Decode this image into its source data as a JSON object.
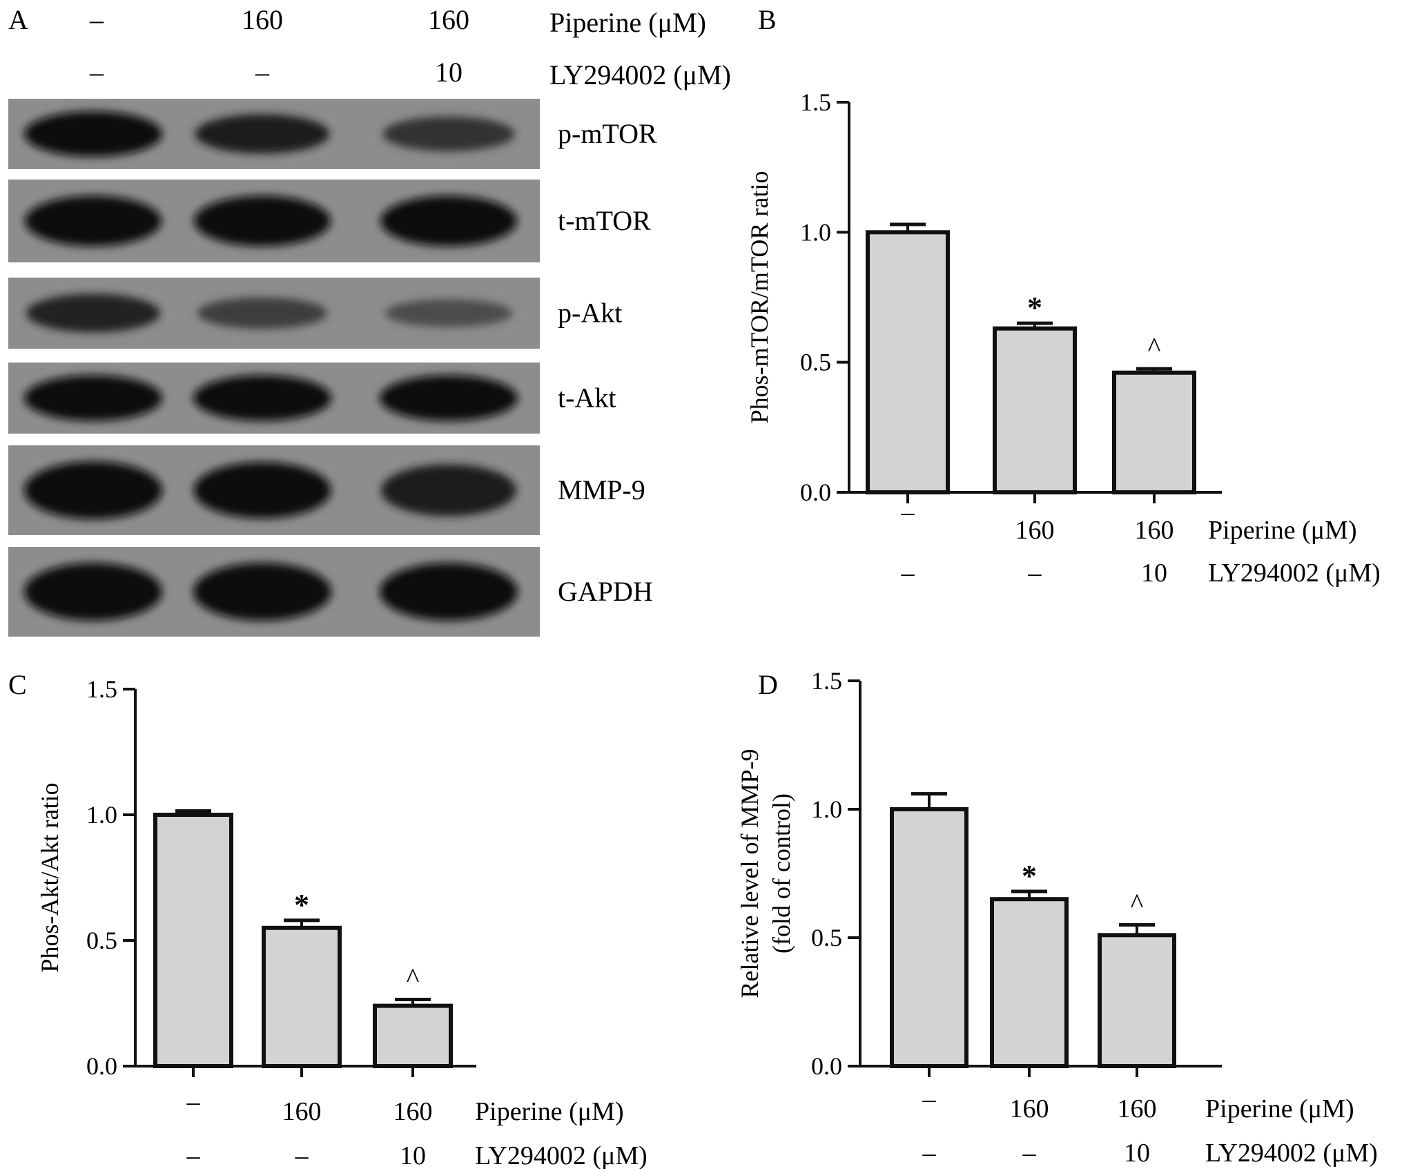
{
  "panels": {
    "A": {
      "letter": "A",
      "columns": [
        {
          "piperine": "–",
          "ly294002": "–"
        },
        {
          "piperine": "160",
          "ly294002": "–"
        },
        {
          "piperine": "160",
          "ly294002": "10"
        }
      ],
      "piperine_label": "Piperine (μM)",
      "ly294002_label": "LY294002 (μM)",
      "blots": [
        {
          "label": "p-mTOR",
          "intensities": [
            1.0,
            0.75,
            0.55
          ]
        },
        {
          "label": "t-mTOR",
          "intensities": [
            0.9,
            0.9,
            0.9
          ]
        },
        {
          "label": "p-Akt",
          "intensities": [
            0.7,
            0.4,
            0.25
          ]
        },
        {
          "label": "t-Akt",
          "intensities": [
            1.0,
            1.0,
            1.0
          ]
        },
        {
          "label": "MMP-9",
          "intensities": [
            1.0,
            0.95,
            0.8
          ]
        },
        {
          "label": "GAPDH",
          "intensities": [
            1.0,
            1.0,
            1.0
          ]
        }
      ]
    }
  },
  "chart_data": [
    {
      "panel": "B",
      "type": "bar",
      "categories": [
        {
          "piperine": "–",
          "ly294002": "–"
        },
        {
          "piperine": "160",
          "ly294002": "–"
        },
        {
          "piperine": "160",
          "ly294002": "10"
        }
      ],
      "values": [
        1.0,
        0.63,
        0.46
      ],
      "errors": [
        0.03,
        0.02,
        0.015
      ],
      "annotations": [
        "",
        "*",
        "^"
      ],
      "ylabel": [
        "Phos-mTOR/mTOR ratio"
      ],
      "ylim": [
        0,
        1.5
      ],
      "yticks": [
        "0.0",
        "0.5",
        "1.0",
        "1.5"
      ],
      "piperine_label": "Piperine (μM)",
      "ly294002_label": "LY294002 (μM)"
    },
    {
      "panel": "C",
      "type": "bar",
      "categories": [
        {
          "piperine": "–",
          "ly294002": "–"
        },
        {
          "piperine": "160",
          "ly294002": "–"
        },
        {
          "piperine": "160",
          "ly294002": "10"
        }
      ],
      "values": [
        1.0,
        0.55,
        0.24
      ],
      "errors": [
        0.015,
        0.03,
        0.025
      ],
      "annotations": [
        "",
        "*",
        "^"
      ],
      "ylabel": [
        "Phos-Akt/Akt ratio"
      ],
      "ylim": [
        0,
        1.5
      ],
      "yticks": [
        "0.0",
        "0.5",
        "1.0",
        "1.5"
      ],
      "piperine_label": "Piperine (μM)",
      "ly294002_label": "LY294002 (μM)"
    },
    {
      "panel": "D",
      "type": "bar",
      "categories": [
        {
          "piperine": "–",
          "ly294002": "–"
        },
        {
          "piperine": "160",
          "ly294002": "–"
        },
        {
          "piperine": "160",
          "ly294002": "10"
        }
      ],
      "values": [
        1.0,
        0.65,
        0.51
      ],
      "errors": [
        0.06,
        0.03,
        0.04
      ],
      "annotations": [
        "",
        "*",
        "^"
      ],
      "ylabel": [
        "Relative level of MMP-9",
        "(fold of control)"
      ],
      "ylim": [
        0,
        1.5
      ],
      "yticks": [
        "0.0",
        "0.5",
        "1.0",
        "1.5"
      ],
      "piperine_label": "Piperine (μM)",
      "ly294002_label": "LY294002 (μM)"
    }
  ]
}
